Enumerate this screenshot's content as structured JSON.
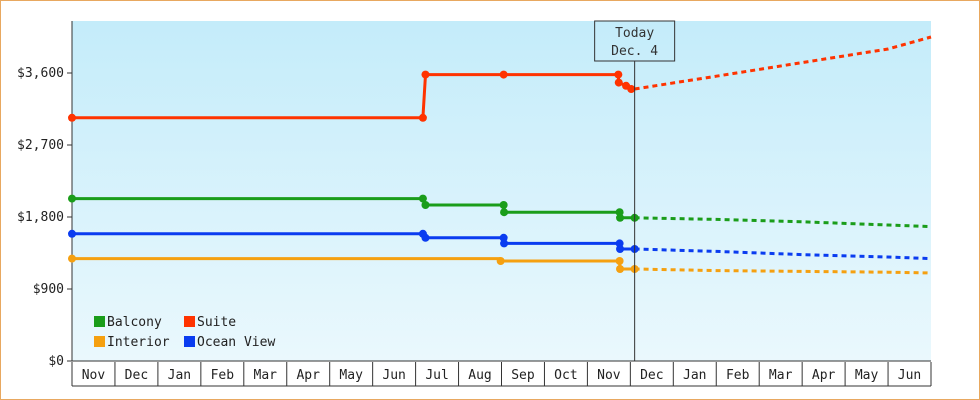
{
  "chart_data": {
    "type": "line",
    "title": "",
    "xlabel": "",
    "ylabel": "",
    "ylim": [
      0,
      4250
    ],
    "y_ticks": [
      0,
      900,
      1800,
      2700,
      3600
    ],
    "y_tick_labels": [
      "$0",
      "$900",
      "$1,800",
      "$2,700",
      "$3,600"
    ],
    "x_month_labels": [
      "Nov",
      "Dec",
      "Jan",
      "Feb",
      "Mar",
      "Apr",
      "May",
      "Jun",
      "Jul",
      "Aug",
      "Sep",
      "Oct",
      "Nov",
      "Dec",
      "Jan",
      "Feb",
      "Mar",
      "Apr",
      "May",
      "Jun"
    ],
    "x_unit": "months (0 = start of first Nov)",
    "today": {
      "line1": "Today",
      "line2": "Dec. 4",
      "x": 13.1
    },
    "grid": false,
    "legend_position": "bottom-left",
    "series": [
      {
        "name": "Suite",
        "color": "#ff3300",
        "history": [
          [
            0,
            3040
          ],
          [
            8.17,
            3040
          ],
          [
            8.23,
            3580
          ],
          [
            10.05,
            3580
          ],
          [
            12.72,
            3580
          ],
          [
            12.73,
            3480
          ],
          [
            12.9,
            3440
          ],
          [
            13.02,
            3400
          ],
          [
            13.1,
            3400
          ]
        ],
        "markers": [
          [
            0,
            3040
          ],
          [
            8.17,
            3040
          ],
          [
            8.23,
            3580
          ],
          [
            10.05,
            3580
          ],
          [
            12.72,
            3580
          ],
          [
            12.73,
            3480
          ],
          [
            12.9,
            3440
          ],
          [
            13.02,
            3400
          ]
        ],
        "forecast": [
          [
            13.1,
            3400
          ],
          [
            15,
            3560
          ],
          [
            17,
            3730
          ],
          [
            19,
            3900
          ],
          [
            20,
            4050
          ]
        ]
      },
      {
        "name": "Balcony",
        "color": "#1a9d1a",
        "history": [
          [
            0,
            2030
          ],
          [
            8.17,
            2030
          ],
          [
            8.23,
            1950
          ],
          [
            10.05,
            1950
          ],
          [
            10.06,
            1860
          ],
          [
            12.75,
            1860
          ],
          [
            12.76,
            1790
          ],
          [
            13.1,
            1790
          ]
        ],
        "markers": [
          [
            0,
            2030
          ],
          [
            8.17,
            2030
          ],
          [
            8.23,
            1950
          ],
          [
            10.05,
            1950
          ],
          [
            10.06,
            1860
          ],
          [
            12.75,
            1860
          ],
          [
            12.76,
            1790
          ],
          [
            13.1,
            1790
          ]
        ],
        "forecast": [
          [
            13.1,
            1790
          ],
          [
            15,
            1770
          ],
          [
            17,
            1740
          ],
          [
            19,
            1700
          ],
          [
            20,
            1680
          ]
        ]
      },
      {
        "name": "Ocean View",
        "color": "#0a3cf0",
        "history": [
          [
            0,
            1590
          ],
          [
            8.17,
            1590
          ],
          [
            8.23,
            1540
          ],
          [
            10.05,
            1540
          ],
          [
            10.06,
            1470
          ],
          [
            12.75,
            1470
          ],
          [
            12.76,
            1400
          ],
          [
            13.1,
            1400
          ]
        ],
        "markers": [
          [
            0,
            1590
          ],
          [
            8.17,
            1590
          ],
          [
            8.23,
            1540
          ],
          [
            10.05,
            1540
          ],
          [
            10.06,
            1470
          ],
          [
            12.75,
            1470
          ],
          [
            12.76,
            1400
          ],
          [
            13.1,
            1400
          ]
        ],
        "forecast": [
          [
            13.1,
            1400
          ],
          [
            15,
            1370
          ],
          [
            17,
            1330
          ],
          [
            19,
            1300
          ],
          [
            20,
            1280
          ]
        ]
      },
      {
        "name": "Interior",
        "color": "#f5a010",
        "history": [
          [
            0,
            1280
          ],
          [
            9.97,
            1280
          ],
          [
            9.98,
            1250
          ],
          [
            12.75,
            1250
          ],
          [
            12.76,
            1150
          ],
          [
            13.1,
            1150
          ]
        ],
        "markers": [
          [
            0,
            1280
          ],
          [
            9.98,
            1250
          ],
          [
            12.75,
            1250
          ],
          [
            12.76,
            1150
          ],
          [
            13.1,
            1150
          ]
        ],
        "forecast": [
          [
            13.1,
            1150
          ],
          [
            15,
            1130
          ],
          [
            17,
            1120
          ],
          [
            19,
            1110
          ],
          [
            20,
            1100
          ]
        ]
      }
    ],
    "legend": [
      {
        "name": "Balcony",
        "color": "#1a9d1a"
      },
      {
        "name": "Suite",
        "color": "#ff3300"
      },
      {
        "name": "Interior",
        "color": "#f5a010"
      },
      {
        "name": "Ocean View",
        "color": "#0a3cf0"
      }
    ]
  }
}
